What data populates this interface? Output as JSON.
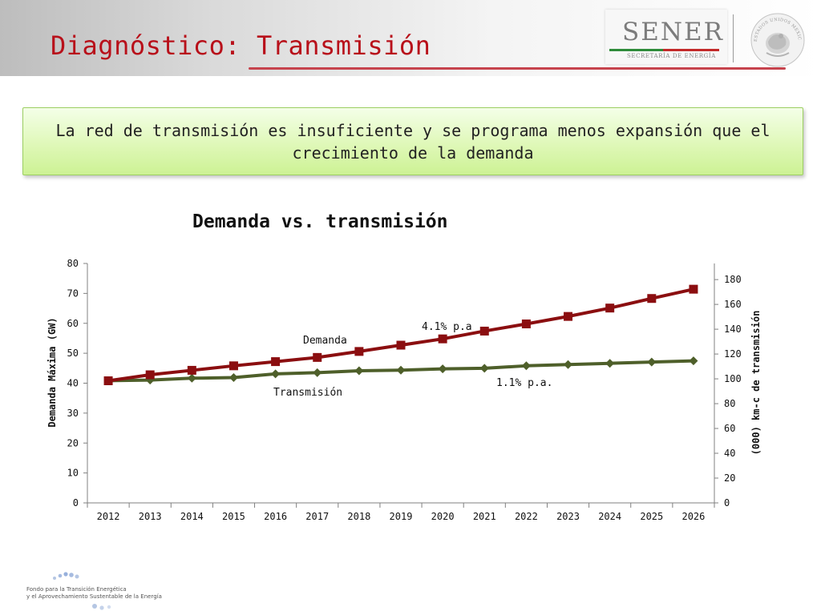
{
  "header": {
    "title": "Diagnóstico: Transmisión",
    "logo_text": "SENER",
    "logo_subtitle": "SECRETARÍA DE ENERGÍA",
    "seal_text": "ESTADOS UNIDOS MEXICANOS"
  },
  "callout": {
    "text": "La red de transmisión es insuficiente y se programa menos expansión que el crecimiento de la demanda"
  },
  "footer": {
    "line1": "Fondo para la Transición Energética",
    "line2": "y el Aprovechamiento Sustentable de la Energía"
  },
  "colors": {
    "demanda": "#8b0e10",
    "transmision": "#4e5f2a",
    "title_red": "#b8101a",
    "callout_green": "#d8f6a8"
  },
  "chart_data": {
    "type": "line",
    "title": "Demanda vs. transmisión",
    "categories": [
      "2012",
      "2013",
      "2014",
      "2015",
      "2016",
      "2017",
      "2018",
      "2019",
      "2020",
      "2021",
      "2022",
      "2023",
      "2024",
      "2025",
      "2026"
    ],
    "ylabel": "Demanda Máxima (GW)",
    "y2label": "(000)  km-c de transmisión",
    "ylim": [
      0,
      80
    ],
    "y_ticks": [
      0,
      10,
      20,
      30,
      40,
      50,
      60,
      70,
      80
    ],
    "y2lim": [
      0,
      193
    ],
    "y2_ticks": [
      0,
      20,
      40,
      60,
      80,
      100,
      120,
      140,
      160,
      180
    ],
    "series": [
      {
        "name": "Demanda",
        "axis": "left",
        "marker": "square",
        "values": [
          40.8,
          42.8,
          44.3,
          45.8,
          47.2,
          48.6,
          50.6,
          52.7,
          54.8,
          57.4,
          59.8,
          62.3,
          65.1,
          68.3,
          71.4
        ]
      },
      {
        "name": "Transmisión",
        "axis": "right",
        "marker": "diamond",
        "values": [
          98.5,
          99.0,
          100.5,
          101.0,
          104.0,
          105.0,
          106.5,
          107.0,
          108.0,
          108.5,
          110.5,
          111.5,
          112.5,
          113.5,
          114.5
        ]
      }
    ],
    "annotations": [
      "Demanda",
      "Transmisión",
      "4.1% p.a",
      "1.1% p.a."
    ],
    "grid": false,
    "legend": "none"
  }
}
